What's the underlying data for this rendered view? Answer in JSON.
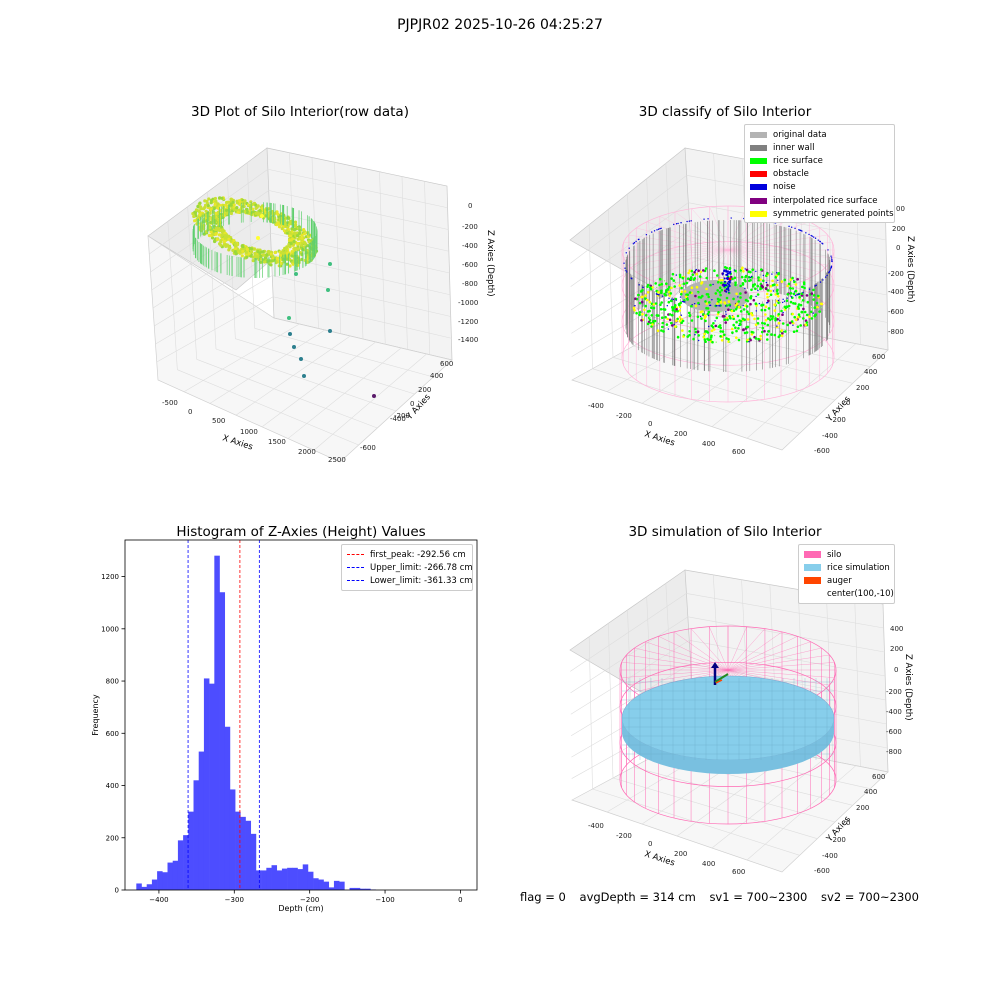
{
  "suptitle": "PJPJR02 2025-10-26 04:25:27",
  "status": {
    "flag": "flag = 0",
    "avg_depth": "avgDepth = 314 cm",
    "sv1": "sv1 = 700~2300",
    "sv2": "sv2 = 700~2300"
  },
  "chart_data": [
    {
      "type": "scatter",
      "title": "3D Plot of Silo Interior(row data)",
      "xlabel": "X Axies",
      "ylabel": "Y Axies",
      "zlabel": "Z Axies (Depth)",
      "x_ticks": [
        "-500",
        "0",
        "500",
        "1000",
        "1500",
        "2000",
        "2500"
      ],
      "y_ticks": [
        "-600",
        "-400",
        "-200",
        "0",
        "200",
        "400",
        "600"
      ],
      "z_ticks": [
        "0",
        "-200",
        "-400",
        "-600",
        "-800",
        "-1000",
        "-1200",
        "-1400"
      ],
      "colors": {
        "surface": "#c8e035",
        "mid": "#3fbf7f",
        "deep": "#2c7f8e",
        "far": "#5a1a6a"
      }
    },
    {
      "type": "scatter",
      "title": "3D classify of Silo Interior",
      "xlabel": "X Axies",
      "ylabel": "Y Axies",
      "zlabel": "Z Axies (Depth)",
      "x_ticks": [
        "-400",
        "-200",
        "0",
        "200",
        "400",
        "600"
      ],
      "y_ticks": [
        "-600",
        "-400",
        "-200",
        "0",
        "200",
        "400",
        "600"
      ],
      "z_ticks": [
        "200",
        "0",
        "-200",
        "-400",
        "-600",
        "-800"
      ],
      "z_tick_partial": "00",
      "legend": [
        {
          "label": "original data",
          "color": "#b3b3b3"
        },
        {
          "label": "inner wall",
          "color": "#808080"
        },
        {
          "label": "rice surface",
          "color": "#00ff00"
        },
        {
          "label": "obstacle",
          "color": "#ff0000"
        },
        {
          "label": "noise",
          "color": "#0000dd"
        },
        {
          "label": "interpolated rice surface",
          "color": "#800080"
        },
        {
          "label": "symmetric generated points",
          "color": "#ffff00"
        }
      ]
    },
    {
      "type": "bar",
      "title": "Histogram of Z-Axies (Height) Values",
      "xlabel": "Depth (cm)",
      "ylabel": "Frequency",
      "xlim": [
        -445,
        22
      ],
      "ylim": [
        0,
        1340
      ],
      "x_ticks": [
        -400,
        -300,
        -200,
        -100,
        0
      ],
      "y_ticks": [
        0,
        200,
        400,
        600,
        800,
        1000,
        1200
      ],
      "bar_color": "#4d4dff",
      "bin_start": -430,
      "bin_width": 6.9,
      "values": [
        25,
        12,
        22,
        40,
        72,
        68,
        105,
        112,
        190,
        210,
        300,
        420,
        530,
        810,
        790,
        1280,
        1140,
        625,
        385,
        300,
        280,
        265,
        215,
        75,
        75,
        85,
        95,
        75,
        82,
        85,
        85,
        80,
        98,
        70,
        45,
        40,
        32,
        10,
        35,
        32,
        0,
        8,
        8,
        5,
        5,
        2
      ],
      "vlines": [
        {
          "label": "first_peak: -292.56 cm",
          "x": -292.56,
          "color": "#ff0000"
        },
        {
          "label": "Upper_limit: -266.78 cm",
          "x": -266.78,
          "color": "#0000ff"
        },
        {
          "label": "Lower_limit: -361.33 cm",
          "x": -361.33,
          "color": "#0000ff"
        }
      ]
    },
    {
      "type": "scatter",
      "title": "3D simulation of Silo Interior",
      "xlabel": "X Axies",
      "ylabel": "Y Axies",
      "zlabel": "Z Axies (Depth)",
      "x_ticks": [
        "-400",
        "-200",
        "0",
        "200",
        "400",
        "600"
      ],
      "y_ticks": [
        "-600",
        "-400",
        "-200",
        "0",
        "200",
        "400",
        "600"
      ],
      "z_ticks": [
        "400",
        "200",
        "0",
        "-200",
        "-400",
        "-600",
        "-800"
      ],
      "legend": [
        {
          "label": "silo",
          "color": "#ff69b4"
        },
        {
          "label": "rice simulation",
          "color": "#87ceeb"
        },
        {
          "label": "auger",
          "color": "#ff4500"
        },
        {
          "label": "center(100,-10)",
          "color": ""
        }
      ]
    }
  ]
}
